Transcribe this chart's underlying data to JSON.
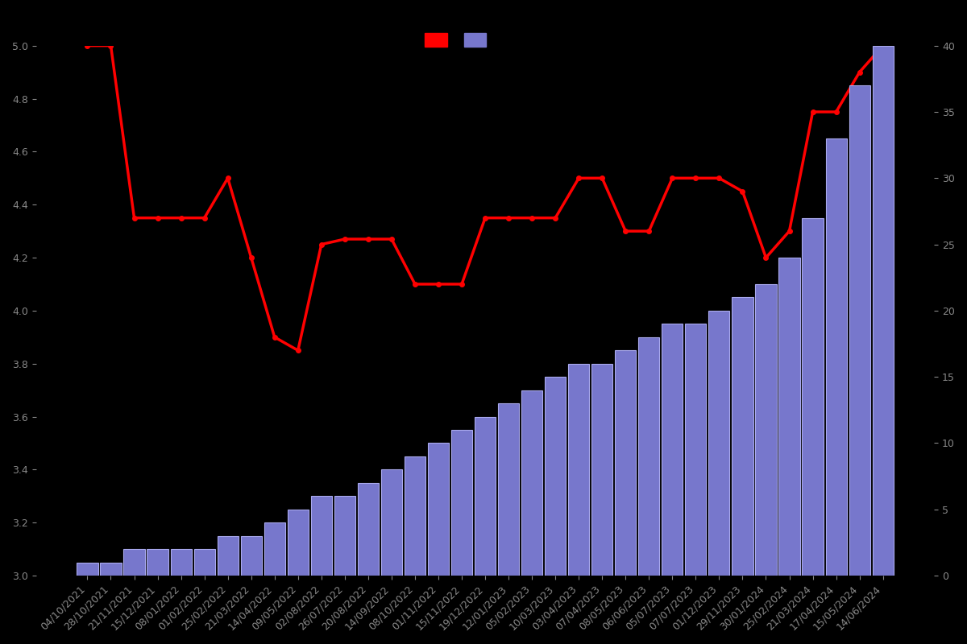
{
  "x_labels": [
    "04/10/2021",
    "28/10/2021",
    "21/11/2021",
    "15/12/2021",
    "08/01/2022",
    "01/02/2022",
    "25/02/2022",
    "21/03/2022",
    "14/04/2022",
    "09/05/2022",
    "02/08/2022",
    "26/07/2022",
    "20/08/2022",
    "14/09/2022",
    "08/10/2022",
    "01/11/2022",
    "15/11/2022",
    "19/12/2022",
    "12/01/2023",
    "05/02/2023",
    "10/03/2023",
    "03/04/2023",
    "07/04/2023",
    "08/05/2023",
    "06/06/2023",
    "05/07/2023",
    "07/07/2023",
    "01/12/2023",
    "29/11/2023",
    "30/01/2024",
    "25/02/2024",
    "21/03/2024",
    "17/04/2024",
    "15/05/2024",
    "14/06/2024"
  ],
  "bar_counts": [
    1,
    1,
    2,
    2,
    2,
    2,
    3,
    3,
    4,
    5,
    6,
    6,
    7,
    8,
    9,
    10,
    11,
    12,
    13,
    14,
    15,
    16,
    16,
    17,
    18,
    19,
    19,
    20,
    21,
    22,
    24,
    27,
    33,
    37,
    40
  ],
  "ratings": [
    5.0,
    5.0,
    4.35,
    4.35,
    4.35,
    4.35,
    4.5,
    4.2,
    3.9,
    3.85,
    4.25,
    4.27,
    4.27,
    4.27,
    4.1,
    4.1,
    4.1,
    4.35,
    4.35,
    4.35,
    4.35,
    4.5,
    4.5,
    4.3,
    4.3,
    4.5,
    4.5,
    4.5,
    4.45,
    4.2,
    4.3,
    4.75,
    4.75,
    4.9,
    5.0
  ],
  "background_color": "#000000",
  "bar_color": "#7777cc",
  "bar_edge_color": "#aaaaee",
  "line_color": "#ff0000",
  "marker_size": 4,
  "line_width": 2.5,
  "text_color": "#888888",
  "ylim_left": [
    3.0,
    5.0
  ],
  "ylim_right": [
    0,
    40
  ],
  "yticks_left": [
    3.0,
    3.2,
    3.4,
    3.6,
    3.8,
    4.0,
    4.2,
    4.4,
    4.6,
    4.8,
    5.0
  ],
  "yticks_right": [
    0,
    5,
    10,
    15,
    20,
    25,
    30,
    35,
    40
  ],
  "tick_label_size": 9
}
